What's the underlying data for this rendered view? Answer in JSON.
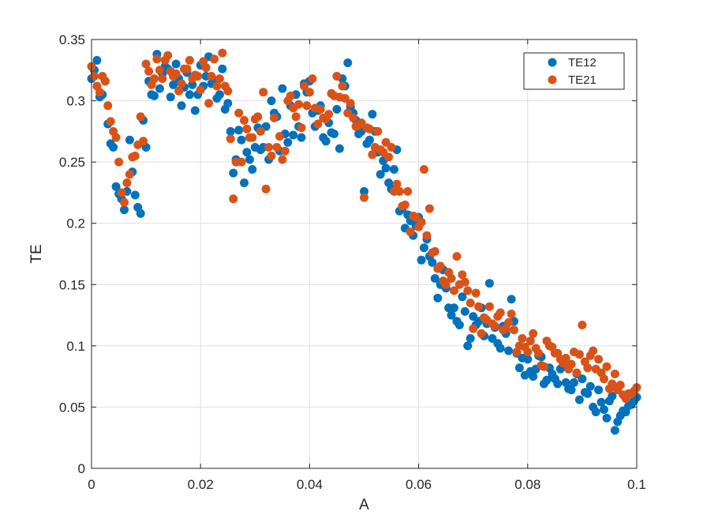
{
  "chart_data": {
    "type": "scatter",
    "title": "",
    "xlabel": "A",
    "ylabel": "TE",
    "xlim": [
      0,
      0.1
    ],
    "ylim": [
      0,
      0.35
    ],
    "xticks": [
      0,
      0.02,
      0.04,
      0.06,
      0.08,
      0.1
    ],
    "xtick_labels": [
      "0",
      "0.02",
      "0.04",
      "0.06",
      "0.08",
      "0.1"
    ],
    "yticks": [
      0,
      0.05,
      0.1,
      0.15,
      0.2,
      0.25,
      0.3,
      0.35
    ],
    "ytick_labels": [
      "0",
      "0.05",
      "0.1",
      "0.15",
      "0.2",
      "0.25",
      "0.3",
      "0.35"
    ],
    "grid": true,
    "legend_position": "top-right",
    "series": [
      {
        "name": "TE12",
        "color": "#0072BD",
        "x": [
          0.0,
          0.001,
          0.002,
          0.003,
          0.004,
          0.005,
          0.006,
          0.007,
          0.008,
          0.009,
          0.01,
          0.011,
          0.012,
          0.013,
          0.014,
          0.015,
          0.016,
          0.017,
          0.018,
          0.019,
          0.02,
          0.021,
          0.022,
          0.023,
          0.024,
          0.025,
          0.026,
          0.027,
          0.028,
          0.029,
          0.03,
          0.031,
          0.032,
          0.033,
          0.034,
          0.035,
          0.036,
          0.037,
          0.038,
          0.039,
          0.04,
          0.041,
          0.042,
          0.043,
          0.044,
          0.045,
          0.046,
          0.047,
          0.048,
          0.049,
          0.05,
          0.051,
          0.052,
          0.053,
          0.054,
          0.055,
          0.056,
          0.057,
          0.058,
          0.059,
          0.06,
          0.061,
          0.062,
          0.063,
          0.064,
          0.065,
          0.066,
          0.067,
          0.068,
          0.069,
          0.07,
          0.071,
          0.072,
          0.073,
          0.074,
          0.075,
          0.076,
          0.077,
          0.078,
          0.079,
          0.08,
          0.081,
          0.082,
          0.083,
          0.084,
          0.085,
          0.086,
          0.087,
          0.088,
          0.089,
          0.09,
          0.091,
          0.092,
          0.093,
          0.094,
          0.095,
          0.096,
          0.097,
          0.098,
          0.099,
          0.1,
          0.0005,
          0.0015,
          0.0025,
          0.0035,
          0.0045,
          0.0055,
          0.0065,
          0.0075,
          0.0085,
          0.0095,
          0.0105,
          0.0115,
          0.0125,
          0.0135,
          0.0145,
          0.0155,
          0.0165,
          0.0175,
          0.0185,
          0.0195,
          0.0205,
          0.0215,
          0.0225,
          0.0235,
          0.0245,
          0.0255,
          0.0265,
          0.0275,
          0.0285,
          0.0295,
          0.0305,
          0.0315,
          0.0325,
          0.0335,
          0.0345,
          0.0355,
          0.0365,
          0.0375,
          0.0385,
          0.0395,
          0.0405,
          0.0415,
          0.0425,
          0.0435,
          0.0445,
          0.0455,
          0.0465,
          0.0475,
          0.0485,
          0.0495,
          0.0505,
          0.0515,
          0.0525,
          0.0535,
          0.0545,
          0.0555,
          0.0565,
          0.0575,
          0.0585,
          0.0595,
          0.0605,
          0.0615,
          0.0625,
          0.0635,
          0.0645,
          0.0655,
          0.0665,
          0.0675,
          0.0685,
          0.0695,
          0.0705,
          0.0715,
          0.0725,
          0.0735,
          0.0745,
          0.0755,
          0.0765,
          0.0775,
          0.0785,
          0.0795,
          0.0805,
          0.0815,
          0.0825,
          0.0835,
          0.0845,
          0.0855,
          0.0865,
          0.0875,
          0.0885,
          0.0895,
          0.0905,
          0.0915,
          0.0925,
          0.0935,
          0.0945,
          0.0955,
          0.0965,
          0.0975,
          0.0985,
          0.0995
        ],
        "y": [
          0.318,
          0.333,
          0.305,
          0.281,
          0.262,
          0.224,
          0.211,
          0.268,
          0.223,
          0.208,
          0.262,
          0.305,
          0.338,
          0.322,
          0.326,
          0.313,
          0.318,
          0.311,
          0.305,
          0.292,
          0.329,
          0.32,
          0.314,
          0.302,
          0.326,
          0.298,
          0.241,
          0.276,
          0.233,
          0.252,
          0.262,
          0.26,
          0.279,
          0.3,
          0.287,
          0.31,
          0.266,
          0.272,
          0.279,
          0.314,
          0.316,
          0.279,
          0.296,
          0.267,
          0.274,
          0.293,
          0.318,
          0.331,
          0.29,
          0.273,
          0.226,
          0.268,
          0.275,
          0.24,
          0.245,
          0.228,
          0.26,
          0.212,
          0.207,
          0.19,
          0.205,
          0.18,
          0.173,
          0.155,
          0.15,
          0.147,
          0.125,
          0.12,
          0.14,
          0.1,
          0.124,
          0.12,
          0.108,
          0.151,
          0.115,
          0.098,
          0.11,
          0.138,
          0.094,
          0.09,
          0.089,
          0.075,
          0.092,
          0.069,
          0.082,
          0.073,
          0.081,
          0.07,
          0.064,
          0.077,
          0.073,
          0.061,
          0.05,
          0.064,
          0.048,
          0.055,
          0.031,
          0.043,
          0.046,
          0.052,
          0.058,
          0.325,
          0.303,
          0.316,
          0.265,
          0.23,
          0.22,
          0.226,
          0.242,
          0.213,
          0.284,
          0.316,
          0.304,
          0.31,
          0.328,
          0.303,
          0.33,
          0.296,
          0.323,
          0.313,
          0.305,
          0.312,
          0.336,
          0.317,
          0.305,
          0.293,
          0.275,
          0.252,
          0.268,
          0.258,
          0.244,
          0.278,
          0.262,
          0.252,
          0.29,
          0.259,
          0.273,
          0.296,
          0.305,
          0.27,
          0.307,
          0.29,
          0.292,
          0.27,
          0.282,
          0.273,
          0.261,
          0.312,
          0.295,
          0.284,
          0.275,
          0.265,
          0.289,
          0.258,
          0.251,
          0.233,
          0.244,
          0.21,
          0.196,
          0.202,
          0.198,
          0.17,
          0.187,
          0.168,
          0.139,
          0.162,
          0.131,
          0.131,
          0.117,
          0.128,
          0.106,
          0.117,
          0.131,
          0.118,
          0.106,
          0.102,
          0.116,
          0.096,
          0.12,
          0.082,
          0.076,
          0.079,
          0.081,
          0.091,
          0.072,
          0.077,
          0.069,
          0.083,
          0.065,
          0.07,
          0.056,
          0.062,
          0.067,
          0.046,
          0.054,
          0.041,
          0.059,
          0.038,
          0.047,
          0.051,
          0.055
        ]
      },
      {
        "name": "TE21",
        "color": "#D95319",
        "x": [
          0.0,
          0.001,
          0.002,
          0.003,
          0.004,
          0.005,
          0.006,
          0.007,
          0.008,
          0.009,
          0.01,
          0.011,
          0.012,
          0.013,
          0.014,
          0.015,
          0.016,
          0.017,
          0.018,
          0.019,
          0.02,
          0.021,
          0.022,
          0.023,
          0.024,
          0.025,
          0.026,
          0.027,
          0.028,
          0.029,
          0.03,
          0.031,
          0.032,
          0.033,
          0.034,
          0.035,
          0.036,
          0.037,
          0.038,
          0.039,
          0.04,
          0.041,
          0.042,
          0.043,
          0.044,
          0.045,
          0.046,
          0.047,
          0.048,
          0.049,
          0.05,
          0.051,
          0.052,
          0.053,
          0.054,
          0.055,
          0.056,
          0.057,
          0.058,
          0.059,
          0.06,
          0.061,
          0.062,
          0.063,
          0.064,
          0.065,
          0.066,
          0.067,
          0.068,
          0.069,
          0.07,
          0.071,
          0.072,
          0.073,
          0.074,
          0.075,
          0.076,
          0.077,
          0.078,
          0.079,
          0.08,
          0.081,
          0.082,
          0.083,
          0.084,
          0.085,
          0.086,
          0.087,
          0.088,
          0.089,
          0.09,
          0.091,
          0.092,
          0.093,
          0.094,
          0.095,
          0.096,
          0.097,
          0.098,
          0.099,
          0.1,
          0.0005,
          0.0015,
          0.0025,
          0.0035,
          0.0045,
          0.0055,
          0.0065,
          0.0075,
          0.0085,
          0.0095,
          0.0105,
          0.0115,
          0.0125,
          0.0135,
          0.0145,
          0.0155,
          0.0165,
          0.0175,
          0.0185,
          0.0195,
          0.0205,
          0.0215,
          0.0225,
          0.0235,
          0.0245,
          0.0255,
          0.0265,
          0.0275,
          0.0285,
          0.0295,
          0.0305,
          0.0315,
          0.0325,
          0.0335,
          0.0345,
          0.0355,
          0.0365,
          0.0375,
          0.0385,
          0.0395,
          0.0405,
          0.0415,
          0.0425,
          0.0435,
          0.0445,
          0.0455,
          0.0465,
          0.0475,
          0.0485,
          0.0495,
          0.0505,
          0.0515,
          0.0525,
          0.0535,
          0.0545,
          0.0555,
          0.0565,
          0.0575,
          0.0585,
          0.0595,
          0.0605,
          0.0615,
          0.0625,
          0.0635,
          0.0645,
          0.0655,
          0.0665,
          0.0675,
          0.0685,
          0.0695,
          0.0705,
          0.0715,
          0.0725,
          0.0735,
          0.0745,
          0.0755,
          0.0765,
          0.0775,
          0.0785,
          0.0795,
          0.0805,
          0.0815,
          0.0825,
          0.0835,
          0.0845,
          0.0855,
          0.0865,
          0.0875,
          0.0885,
          0.0895,
          0.0905,
          0.0915,
          0.0925,
          0.0935,
          0.0945,
          0.0955,
          0.0965,
          0.0975,
          0.0985,
          0.0995
        ],
        "y": [
          0.328,
          0.312,
          0.32,
          0.296,
          0.275,
          0.25,
          0.217,
          0.24,
          0.255,
          0.287,
          0.33,
          0.313,
          0.334,
          0.318,
          0.337,
          0.32,
          0.308,
          0.326,
          0.333,
          0.321,
          0.309,
          0.327,
          0.32,
          0.312,
          0.339,
          0.308,
          0.22,
          0.29,
          0.284,
          0.27,
          0.285,
          0.275,
          0.228,
          0.255,
          0.262,
          0.252,
          0.3,
          0.294,
          0.297,
          0.312,
          0.307,
          0.294,
          0.293,
          0.285,
          0.306,
          0.32,
          0.312,
          0.29,
          0.286,
          0.28,
          0.221,
          0.277,
          0.262,
          0.26,
          0.266,
          0.262,
          0.232,
          0.214,
          0.226,
          0.206,
          0.197,
          0.244,
          0.212,
          0.177,
          0.165,
          0.15,
          0.155,
          0.173,
          0.158,
          0.145,
          0.114,
          0.132,
          0.123,
          0.132,
          0.116,
          0.127,
          0.114,
          0.126,
          0.095,
          0.106,
          0.095,
          0.11,
          0.094,
          0.083,
          0.1,
          0.094,
          0.089,
          0.09,
          0.085,
          0.078,
          0.117,
          0.082,
          0.096,
          0.089,
          0.073,
          0.065,
          0.077,
          0.068,
          0.057,
          0.061,
          0.066,
          0.32,
          0.307,
          0.316,
          0.283,
          0.27,
          0.225,
          0.233,
          0.254,
          0.264,
          0.267,
          0.324,
          0.318,
          0.325,
          0.333,
          0.324,
          0.322,
          0.314,
          0.326,
          0.318,
          0.32,
          0.332,
          0.298,
          0.334,
          0.318,
          0.312,
          0.269,
          0.25,
          0.25,
          0.277,
          0.27,
          0.287,
          0.307,
          0.262,
          0.286,
          0.271,
          0.259,
          0.304,
          0.287,
          0.278,
          0.296,
          0.318,
          0.281,
          0.286,
          0.289,
          0.304,
          0.303,
          0.302,
          0.298,
          0.279,
          0.282,
          0.278,
          0.256,
          0.275,
          0.258,
          0.254,
          0.226,
          0.226,
          0.215,
          0.193,
          0.205,
          0.201,
          0.19,
          0.176,
          0.163,
          0.153,
          0.16,
          0.145,
          0.15,
          0.152,
          0.135,
          0.143,
          0.11,
          0.121,
          0.118,
          0.124,
          0.113,
          0.119,
          0.113,
          0.1,
          0.099,
          0.104,
          0.098,
          0.084,
          0.104,
          0.099,
          0.094,
          0.086,
          0.081,
          0.095,
          0.093,
          0.087,
          0.092,
          0.081,
          0.078,
          0.083,
          0.069,
          0.064,
          0.06,
          0.061,
          0.063
        ]
      }
    ]
  }
}
